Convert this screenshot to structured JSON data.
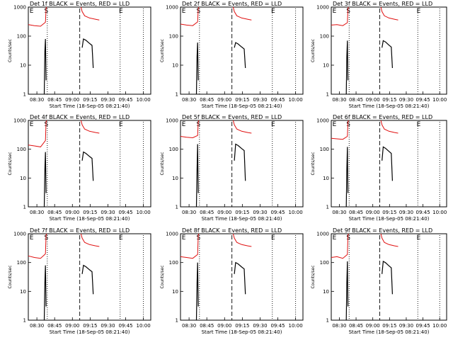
{
  "chart_data": [
    {
      "type": "line",
      "panel": "Det 1f",
      "title": "Det 1f BLACK = Events, RED = LLD",
      "xlabel": "Start Time (18-Sep-05 08:21:40)",
      "ylabel": "Counts/sec",
      "markers": [
        "E",
        "S",
        "E"
      ],
      "red_series": {
        "name": "RED = LLD",
        "values": [
          250,
          230,
          220,
          300,
          900,
          1000
        ]
      },
      "black_series": {
        "name": "BLACK = Events",
        "values": [
          1,
          30,
          80,
          3
        ]
      }
    },
    {
      "type": "line",
      "panel": "Det 2f",
      "title": "Det 2f BLACK = Events, RED = LLD",
      "xlabel": "Start Time (18-Sep-05 08:21:40)",
      "ylabel": "Counts/sec",
      "markers": [
        "E",
        "S",
        "E"
      ],
      "red_series": {
        "name": "RED = LLD",
        "values": [
          260,
          240,
          230,
          310,
          900,
          1000
        ]
      },
      "black_series": {
        "name": "BLACK = Events",
        "values": [
          1,
          20,
          60,
          3
        ]
      }
    },
    {
      "type": "line",
      "panel": "Det 3f",
      "title": "Det 3f BLACK = Events, RED = LLD",
      "xlabel": "Start Time (18-Sep-05 08:21:40)",
      "ylabel": "Counts/sec",
      "markers": [
        "E",
        "S",
        "E"
      ],
      "red_series": {
        "name": "RED = LLD",
        "values": [
          240,
          250,
          230,
          290,
          900,
          1000
        ]
      },
      "black_series": {
        "name": "BLACK = Events",
        "values": [
          1,
          20,
          70,
          3
        ]
      }
    },
    {
      "type": "line",
      "panel": "Det 4f",
      "title": "Det 4f BLACK = Events, RED = LLD",
      "xlabel": "Start Time (18-Sep-05 08:21:40)",
      "ylabel": "Counts/sec",
      "markers": [
        "E",
        "S",
        "E"
      ],
      "red_series": {
        "name": "RED = LLD",
        "values": [
          140,
          130,
          120,
          200,
          900,
          1000
        ]
      },
      "black_series": {
        "name": "BLACK = Events",
        "values": [
          1,
          20,
          80,
          3
        ]
      }
    },
    {
      "type": "line",
      "panel": "Det 5f",
      "title": "Det 5f BLACK = Events, RED = LLD",
      "xlabel": "Start Time (18-Sep-05 08:21:40)",
      "ylabel": "Counts/sec",
      "markers": [
        "E",
        "S",
        "E"
      ],
      "red_series": {
        "name": "RED = LLD",
        "values": [
          280,
          260,
          250,
          300,
          900,
          1000
        ]
      },
      "black_series": {
        "name": "BLACK = Events",
        "values": [
          1,
          20,
          150,
          3
        ]
      }
    },
    {
      "type": "line",
      "panel": "Det 6f",
      "title": "Det 6f BLACK = Events, RED = LLD",
      "xlabel": "Start Time (18-Sep-05 08:21:40)",
      "ylabel": "Counts/sec",
      "markers": [
        "E",
        "S",
        "E"
      ],
      "red_series": {
        "name": "RED = LLD",
        "values": [
          240,
          230,
          220,
          280,
          900,
          1000
        ]
      },
      "black_series": {
        "name": "BLACK = Events",
        "values": [
          1,
          20,
          120,
          3
        ]
      }
    },
    {
      "type": "line",
      "panel": "Det 7f",
      "title": "Det 7f BLACK = Events, RED = LLD",
      "xlabel": "Start Time (18-Sep-05 08:21:40)",
      "ylabel": "Counts/sec",
      "markers": [
        "E",
        "S",
        "E"
      ],
      "red_series": {
        "name": "RED = LLD",
        "values": [
          170,
          150,
          140,
          200,
          900,
          1000
        ]
      },
      "black_series": {
        "name": "BLACK = Events",
        "values": [
          1,
          20,
          80,
          3
        ]
      }
    },
    {
      "type": "line",
      "panel": "Det 8f",
      "title": "Det 8f BLACK = Events, RED = LLD",
      "xlabel": "Start Time (18-Sep-05 08:21:40)",
      "ylabel": "Counts/sec",
      "markers": [
        "E",
        "S",
        "E"
      ],
      "red_series": {
        "name": "RED = LLD",
        "values": [
          160,
          150,
          140,
          190,
          900,
          1000
        ]
      },
      "black_series": {
        "name": "BLACK = Events",
        "values": [
          1,
          20,
          100,
          3
        ]
      }
    },
    {
      "type": "line",
      "panel": "Det 9f",
      "title": "Det 9f BLACK = Events, RED = LLD",
      "xlabel": "Start Time (18-Sep-05 08:21:40)",
      "ylabel": "Counts/sec",
      "markers": [
        "E",
        "S",
        "E"
      ],
      "red_series": {
        "name": "RED = LLD",
        "values": [
          150,
          160,
          140,
          190,
          900,
          1000
        ]
      },
      "black_series": {
        "name": "BLACK = Events",
        "values": [
          1,
          20,
          110,
          3
        ]
      }
    }
  ],
  "axes": {
    "y_log": true,
    "y_range": [
      1,
      1000
    ],
    "y_ticks": [
      "1",
      "10",
      "100",
      "1000"
    ],
    "x_ticks": [
      "08:30",
      "08:45",
      "09:00",
      "09:15",
      "09:30",
      "09:45",
      "10:00"
    ]
  },
  "colors": {
    "events": "#000000",
    "lld": "#e01010",
    "frame": "#000000",
    "background": "#ffffff"
  }
}
